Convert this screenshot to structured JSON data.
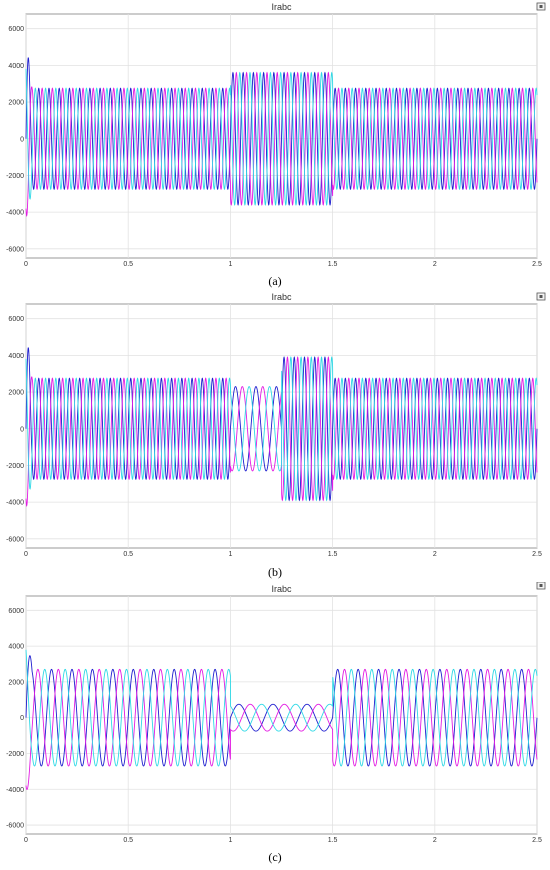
{
  "chart_data": [
    {
      "type": "line",
      "title": "Irabc",
      "caption": "(a)",
      "xlim": [
        0,
        2.5
      ],
      "ylim": [
        -6500,
        6800
      ],
      "xticks": [
        "0",
        "0.5",
        "1",
        "1.5",
        "2",
        "2.5"
      ],
      "yticks": [
        "6000",
        "4000",
        "2000",
        "0",
        "-2000",
        "-4000",
        "-6000"
      ],
      "grid": true,
      "colors": [
        "#1f1fcf",
        "#e31be3",
        "#2fd9e6"
      ],
      "frequency_hz": 20,
      "segments": [
        {
          "start": 0.0,
          "end": 1.0,
          "amplitude": 2750
        },
        {
          "start": 1.0,
          "end": 1.5,
          "amplitude": 3600
        },
        {
          "start": 1.5,
          "end": 2.5,
          "amplitude": 2750
        }
      ]
    },
    {
      "type": "line",
      "title": "Irabc",
      "caption": "(b)",
      "xlim": [
        0,
        2.5
      ],
      "ylim": [
        -6500,
        6800
      ],
      "xticks": [
        "0",
        "0.5",
        "1",
        "1.5",
        "2",
        "2.5"
      ],
      "yticks": [
        "6000",
        "4000",
        "2000",
        "0",
        "-2000",
        "-4000",
        "-6000"
      ],
      "grid": true,
      "colors": [
        "#1f1fcf",
        "#e31be3",
        "#2fd9e6"
      ],
      "frequency_hz": 20,
      "segments": [
        {
          "start": 0.0,
          "end": 1.0,
          "amplitude": 2750
        },
        {
          "start": 1.0,
          "end": 1.25,
          "amplitude": 2300,
          "frequency_hz": 10
        },
        {
          "start": 1.25,
          "end": 1.5,
          "amplitude": 3900
        },
        {
          "start": 1.5,
          "end": 2.5,
          "amplitude": 2750
        }
      ]
    },
    {
      "type": "line",
      "title": "Irabc",
      "caption": "(c)",
      "xlim": [
        0,
        2.5
      ],
      "ylim": [
        -6500,
        6800
      ],
      "xticks": [
        "0",
        "0.5",
        "1",
        "1.5",
        "2",
        "2.5"
      ],
      "yticks": [
        "6000",
        "4000",
        "2000",
        "0",
        "-2000",
        "-4000",
        "-6000"
      ],
      "grid": true,
      "colors": [
        "#1f1fcf",
        "#e31be3",
        "#2fd9e6"
      ],
      "frequency_hz": 10,
      "segments": [
        {
          "start": 0.0,
          "end": 1.0,
          "amplitude": 2700
        },
        {
          "start": 1.0,
          "end": 1.5,
          "amplitude": 750,
          "frequency_hz": 6
        },
        {
          "start": 1.5,
          "end": 2.5,
          "amplitude": 2700
        }
      ]
    }
  ]
}
